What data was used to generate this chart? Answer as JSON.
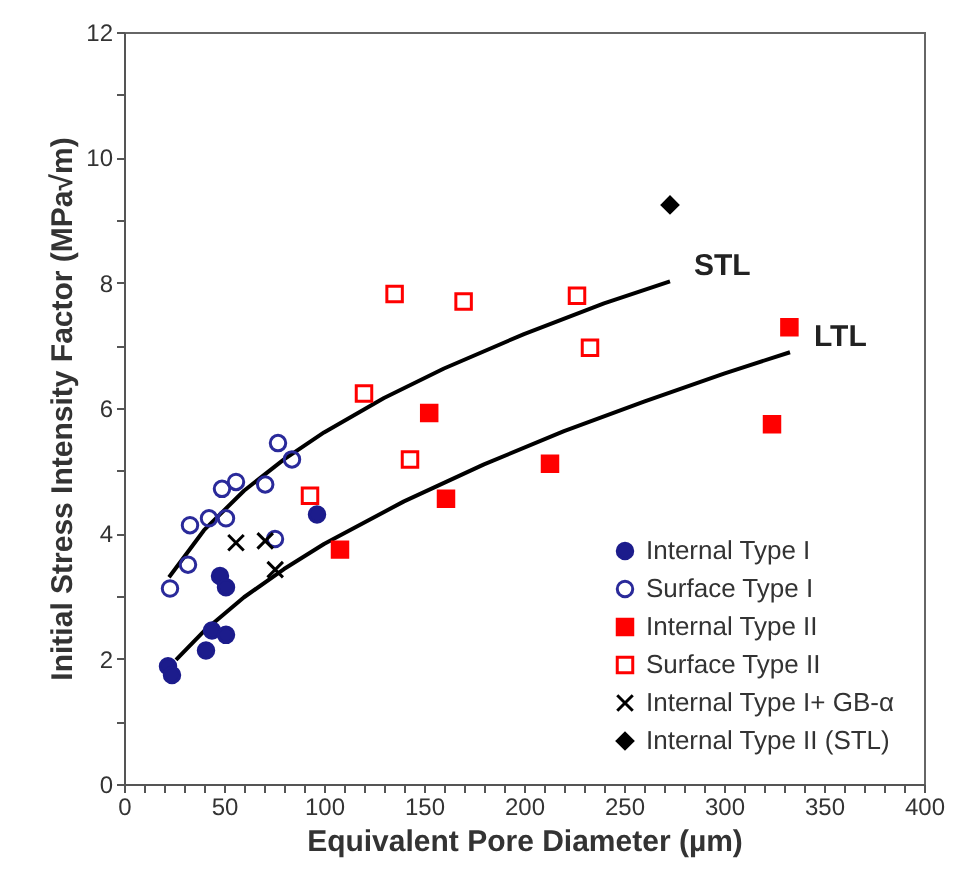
{
  "chart_data": {
    "type": "scatter",
    "xlabel": "Equivalent Pore Diameter (µm)",
    "ylabel": "Initial Stress Intensity Factor (MPa√m)",
    "xlim": [
      0,
      400
    ],
    "ylim": [
      0,
      12
    ],
    "xticks": [
      0,
      {
        "value": 10,
        "label": null
      },
      {
        "value": 20,
        "label": null
      },
      {
        "value": 30,
        "label": null
      },
      {
        "value": 40,
        "label": null
      },
      50,
      {
        "value": 60,
        "label": null
      },
      {
        "value": 70,
        "label": null
      },
      {
        "value": 80,
        "label": null
      },
      {
        "value": 90,
        "label": null
      },
      100,
      {
        "value": 110,
        "label": null
      },
      {
        "value": 120,
        "label": null
      },
      {
        "value": 130,
        "label": null
      },
      {
        "value": 140,
        "label": null
      },
      150,
      {
        "value": 160,
        "label": null
      },
      {
        "value": 170,
        "label": null
      },
      {
        "value": 180,
        "label": null
      },
      {
        "value": 190,
        "label": null
      },
      200,
      {
        "value": 210,
        "label": null
      },
      {
        "value": 220,
        "label": null
      },
      {
        "value": 230,
        "label": null
      },
      {
        "value": 240,
        "label": null
      },
      250,
      {
        "value": 260,
        "label": null
      },
      {
        "value": 270,
        "label": null
      },
      {
        "value": 280,
        "label": null
      },
      {
        "value": 290,
        "label": null
      },
      300,
      {
        "value": 310,
        "label": null
      },
      {
        "value": 320,
        "label": null
      },
      {
        "value": 330,
        "label": null
      },
      {
        "value": 340,
        "label": null
      },
      350,
      {
        "value": 360,
        "label": null
      },
      {
        "value": 370,
        "label": null
      },
      {
        "value": 380,
        "label": null
      },
      {
        "value": 390,
        "label": null
      },
      400
    ],
    "yticks": [
      0,
      {
        "value": 1,
        "label": null
      },
      2,
      {
        "value": 3,
        "label": null
      },
      4,
      {
        "value": 5,
        "label": null
      },
      6,
      {
        "value": 7,
        "label": null
      },
      8,
      {
        "value": 9,
        "label": null
      },
      10,
      {
        "value": 11,
        "label": null
      },
      12
    ],
    "grid": false,
    "legend": "bottom right",
    "series": [
      {
        "name": "Internal Type I",
        "color": "#1c1c8c",
        "marker": "circle",
        "x": [
          22,
          24,
          41,
          44,
          51,
          48,
          51,
          96.5
        ],
        "values": [
          1.88,
          1.74,
          2.13,
          2.45,
          2.38,
          3.32,
          3.14,
          4.3
        ]
      },
      {
        "name": "Surface Type I",
        "color": "#2a2a9a",
        "marker": "circle-open",
        "x": [
          23,
          32,
          33,
          42.5,
          49,
          56,
          51,
          70.6,
          77,
          84,
          75.5
        ],
        "values": [
          3.12,
          3.5,
          4.13,
          4.24,
          4.71,
          4.82,
          4.24,
          4.78,
          5.44,
          5.18,
          3.91
        ]
      },
      {
        "name": "Internal Type II",
        "color": "#ff0000",
        "marker": "square",
        "x": [
          108,
          152.6,
          161,
          213,
          324,
          332.7
        ],
        "values": [
          3.74,
          5.92,
          4.55,
          5.11,
          5.74,
          7.29
        ]
      },
      {
        "name": "Surface Type II",
        "color": "#ff0000",
        "marker": "square-open",
        "x": [
          93,
          120,
          135.3,
          143,
          169.8,
          226.5,
          233
        ],
        "values": [
          4.6,
          6.23,
          7.82,
          5.18,
          7.7,
          7.79,
          6.96
        ]
      },
      {
        "name": "Internal Type I+ GB-α",
        "color": "#000000",
        "marker": "cross",
        "x": [
          56,
          70.6,
          75.6
        ],
        "values": [
          3.85,
          3.88,
          3.42
        ]
      },
      {
        "name": "Internal Type II (STL)",
        "color": "#000000",
        "marker": "diamond",
        "x": [
          273
        ],
        "values": [
          9.24
        ]
      },
      {
        "name": "STL",
        "type": "line",
        "color": "#000000",
        "marker": "none",
        "x": [
          22.5,
          40,
          60,
          80,
          100,
          130,
          160,
          200,
          240,
          273
        ],
        "values": [
          3.3,
          4.05,
          4.68,
          5.18,
          5.61,
          6.16,
          6.63,
          7.18,
          7.67,
          8.02
        ]
      },
      {
        "name": "LTL",
        "type": "line",
        "color": "#000000",
        "marker": "none",
        "x": [
          26,
          40,
          60,
          80,
          100,
          140,
          180,
          220,
          260,
          300,
          333
        ],
        "values": [
          1.98,
          2.44,
          2.98,
          3.43,
          3.83,
          4.51,
          5.1,
          5.63,
          6.1,
          6.55,
          6.89
        ]
      }
    ]
  }
}
